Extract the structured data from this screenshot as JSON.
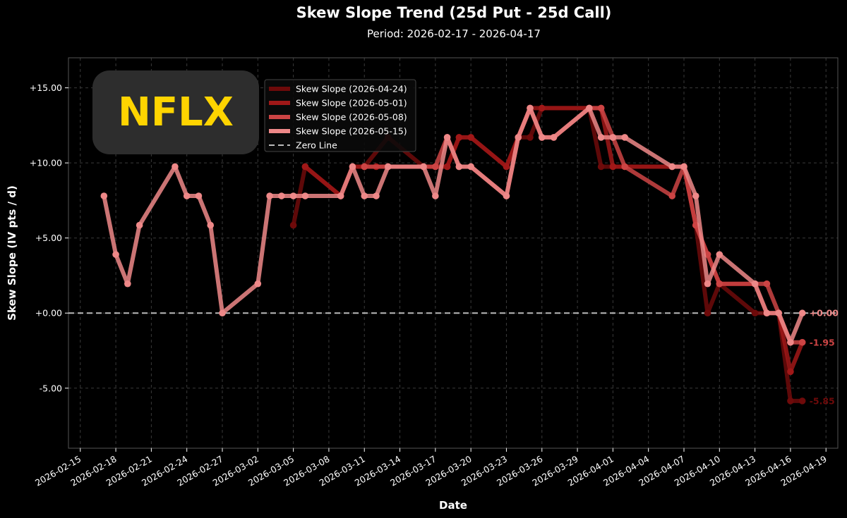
{
  "chart_data": {
    "type": "line",
    "title": "Skew Slope Trend (25d Put - 25d Call)",
    "subtitle": "Period: 2026-02-17 - 2026-04-17",
    "xlabel": "Date",
    "ylabel": "Skew Slope (IV pts / d)",
    "watermark": "NFLX",
    "xlim": [
      "2026-02-14",
      "2026-04-20"
    ],
    "ylim": [
      -9.0,
      17.0
    ],
    "x_ticks": [
      "2026-02-15",
      "2026-02-18",
      "2026-02-21",
      "2026-02-24",
      "2026-02-27",
      "2026-03-02",
      "2026-03-05",
      "2026-03-08",
      "2026-03-11",
      "2026-03-14",
      "2026-03-17",
      "2026-03-20",
      "2026-03-23",
      "2026-03-26",
      "2026-03-29",
      "2026-04-01",
      "2026-04-04",
      "2026-04-07",
      "2026-04-10",
      "2026-04-13",
      "2026-04-16",
      "2026-04-19"
    ],
    "y_ticks": [
      -5,
      0,
      5,
      10,
      15
    ],
    "y_tick_labels": [
      "-5.00",
      "+0.00",
      "+5.00",
      "+10.00",
      "+15.00"
    ],
    "grid": true,
    "legend_position": "top-center",
    "zero_line": {
      "label": "Zero Line",
      "y": 0,
      "color": "#bbbbbb"
    },
    "series": [
      {
        "name": "Skew Slope (2026-04-24)",
        "color": "#6e0a0a",
        "end_label": "-5.85",
        "points": [
          [
            "2026-03-05",
            5.85
          ],
          [
            "2026-03-06",
            9.75
          ],
          [
            "2026-03-09",
            7.8
          ],
          [
            "2026-03-10",
            9.75
          ],
          [
            "2026-03-11",
            9.75
          ],
          [
            "2026-03-13",
            11.7
          ],
          [
            "2026-03-16",
            9.75
          ],
          [
            "2026-03-17",
            9.75
          ],
          [
            "2026-03-18",
            9.75
          ],
          [
            "2026-03-19",
            11.7
          ],
          [
            "2026-03-20",
            11.7
          ],
          [
            "2026-03-23",
            9.75
          ],
          [
            "2026-03-24",
            11.7
          ],
          [
            "2026-03-25",
            11.7
          ],
          [
            "2026-03-26",
            13.65
          ],
          [
            "2026-03-30",
            13.65
          ],
          [
            "2026-03-31",
            9.75
          ],
          [
            "2026-04-01",
            9.75
          ],
          [
            "2026-04-02",
            9.75
          ],
          [
            "2026-04-06",
            9.75
          ],
          [
            "2026-04-07",
            9.75
          ],
          [
            "2026-04-08",
            5.85
          ],
          [
            "2026-04-09",
            0.0
          ],
          [
            "2026-04-10",
            1.95
          ],
          [
            "2026-04-13",
            0.0
          ],
          [
            "2026-04-14",
            0.0
          ],
          [
            "2026-04-15",
            0.0
          ],
          [
            "2026-04-16",
            -5.85
          ],
          [
            "2026-04-17",
            -5.85
          ]
        ]
      },
      {
        "name": "Skew Slope (2026-05-01)",
        "color": "#a01818",
        "end_label": "",
        "points": [
          [
            "2026-03-06",
            9.75
          ],
          [
            "2026-03-09",
            7.8
          ],
          [
            "2026-03-10",
            9.75
          ],
          [
            "2026-03-11",
            9.75
          ],
          [
            "2026-03-12",
            9.75
          ],
          [
            "2026-03-13",
            9.75
          ],
          [
            "2026-03-16",
            9.75
          ],
          [
            "2026-03-18",
            9.75
          ],
          [
            "2026-03-19",
            11.7
          ],
          [
            "2026-03-20",
            11.7
          ],
          [
            "2026-03-23",
            9.75
          ],
          [
            "2026-03-24",
            11.7
          ],
          [
            "2026-03-25",
            13.65
          ],
          [
            "2026-03-26",
            13.65
          ],
          [
            "2026-03-30",
            13.65
          ],
          [
            "2026-03-31",
            13.65
          ],
          [
            "2026-04-01",
            9.75
          ],
          [
            "2026-04-06",
            9.75
          ],
          [
            "2026-04-07",
            9.75
          ],
          [
            "2026-04-08",
            5.85
          ],
          [
            "2026-04-09",
            3.9
          ],
          [
            "2026-04-10",
            1.95
          ],
          [
            "2026-04-13",
            1.95
          ],
          [
            "2026-04-14",
            0.0
          ],
          [
            "2026-04-15",
            0.0
          ],
          [
            "2026-04-16",
            -3.9
          ],
          [
            "2026-04-17",
            -1.95
          ]
        ]
      },
      {
        "name": "Skew Slope (2026-05-08)",
        "color": "#cc4444",
        "end_label": "-1.95",
        "points": [
          [
            "2026-03-11",
            9.75
          ],
          [
            "2026-03-13",
            9.75
          ],
          [
            "2026-03-16",
            9.75
          ],
          [
            "2026-03-17",
            9.75
          ],
          [
            "2026-03-18",
            11.7
          ],
          [
            "2026-03-19",
            9.75
          ],
          [
            "2026-03-20",
            9.75
          ],
          [
            "2026-03-23",
            7.8
          ],
          [
            "2026-03-24",
            11.7
          ],
          [
            "2026-03-25",
            13.65
          ],
          [
            "2026-03-26",
            11.7
          ],
          [
            "2026-03-27",
            11.7
          ],
          [
            "2026-03-30",
            13.65
          ],
          [
            "2026-03-31",
            13.65
          ],
          [
            "2026-04-01",
            11.7
          ],
          [
            "2026-04-02",
            9.75
          ],
          [
            "2026-04-06",
            7.8
          ],
          [
            "2026-04-07",
            9.75
          ],
          [
            "2026-04-08",
            5.85
          ],
          [
            "2026-04-09",
            3.9
          ],
          [
            "2026-04-10",
            1.95
          ],
          [
            "2026-04-13",
            1.95
          ],
          [
            "2026-04-14",
            1.95
          ],
          [
            "2026-04-15",
            0.0
          ],
          [
            "2026-04-16",
            -1.95
          ],
          [
            "2026-04-17",
            -1.95
          ]
        ]
      },
      {
        "name": "Skew Slope (2026-05-15)",
        "color": "#ee8888",
        "end_label": "+0.00",
        "points": [
          [
            "2026-02-17",
            7.8
          ],
          [
            "2026-02-18",
            3.9
          ],
          [
            "2026-02-19",
            1.95
          ],
          [
            "2026-02-20",
            5.85
          ],
          [
            "2026-02-23",
            9.75
          ],
          [
            "2026-02-24",
            7.8
          ],
          [
            "2026-02-25",
            7.8
          ],
          [
            "2026-02-26",
            5.85
          ],
          [
            "2026-02-27",
            0.0
          ],
          [
            "2026-03-02",
            1.95
          ],
          [
            "2026-03-03",
            7.8
          ],
          [
            "2026-03-04",
            7.8
          ],
          [
            "2026-03-05",
            7.8
          ],
          [
            "2026-03-06",
            7.8
          ],
          [
            "2026-03-09",
            7.8
          ],
          [
            "2026-03-10",
            9.75
          ],
          [
            "2026-03-11",
            7.8
          ],
          [
            "2026-03-12",
            7.8
          ],
          [
            "2026-03-13",
            9.75
          ],
          [
            "2026-03-16",
            9.75
          ],
          [
            "2026-03-17",
            7.8
          ],
          [
            "2026-03-18",
            11.7
          ],
          [
            "2026-03-19",
            9.75
          ],
          [
            "2026-03-20",
            9.75
          ],
          [
            "2026-03-23",
            7.8
          ],
          [
            "2026-03-24",
            11.7
          ],
          [
            "2026-03-25",
            13.65
          ],
          [
            "2026-03-26",
            11.7
          ],
          [
            "2026-03-27",
            11.7
          ],
          [
            "2026-03-30",
            13.65
          ],
          [
            "2026-03-31",
            11.7
          ],
          [
            "2026-04-01",
            11.7
          ],
          [
            "2026-04-02",
            11.7
          ],
          [
            "2026-04-06",
            9.75
          ],
          [
            "2026-04-07",
            9.75
          ],
          [
            "2026-04-08",
            7.8
          ],
          [
            "2026-04-09",
            1.95
          ],
          [
            "2026-04-10",
            3.9
          ],
          [
            "2026-04-13",
            1.95
          ],
          [
            "2026-04-14",
            0.0
          ],
          [
            "2026-04-15",
            0.0
          ],
          [
            "2026-04-16",
            -1.95
          ],
          [
            "2026-04-17",
            0.0
          ]
        ]
      }
    ]
  }
}
